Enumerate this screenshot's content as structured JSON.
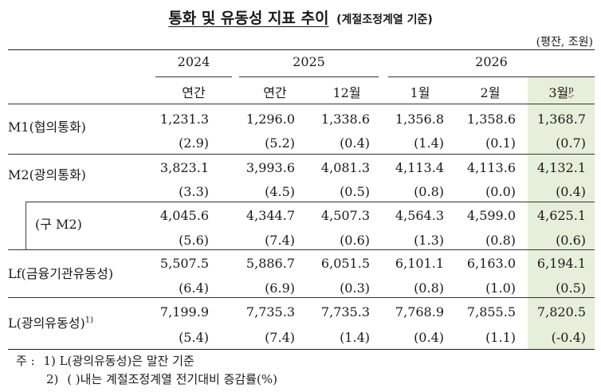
{
  "title": "통화 및 유동성 지표 추이",
  "subtitle": "(계절조정계열 기준)",
  "unit": "(평잔, 조원)",
  "years": [
    "2024",
    "2025",
    "2026"
  ],
  "columns": [
    "연간",
    "연간",
    "12월",
    "1월",
    "2월",
    "3월"
  ],
  "prelim_mark": "p",
  "rows": [
    {
      "label": "M1(협의통화)",
      "values": [
        "1,231.3",
        "1,296.0",
        "1,338.6",
        "1,356.8",
        "1,358.6",
        "1,368.7"
      ],
      "changes": [
        "(2.9)",
        "(5.2)",
        "(0.4)",
        "(1.4)",
        "(0.1)",
        "(0.7)"
      ]
    },
    {
      "label": "M2(광의통화)",
      "values": [
        "3,823.1",
        "3,993.6",
        "4,081.3",
        "4,113.4",
        "4,113.6",
        "4,132.1"
      ],
      "changes": [
        "(3.3)",
        "(4.5)",
        "(0.5)",
        "(0.8)",
        "(0.0)",
        "(0.4)"
      ]
    },
    {
      "label": "(구  M2)",
      "values": [
        "4,045.6",
        "4,344.7",
        "4,507.3",
        "4,564.3",
        "4,599.0",
        "4,625.1"
      ],
      "changes": [
        "(5.6)",
        "(7.4)",
        "(0.6)",
        "(1.3)",
        "(0.8)",
        "(0.6)"
      ]
    },
    {
      "label": "Lf(금융기관유동성)",
      "values": [
        "5,507.5",
        "5,886.7",
        "6,051.5",
        "6,101.1",
        "6,163.0",
        "6,194.1"
      ],
      "changes": [
        "(6.4)",
        "(6.9)",
        "(0.3)",
        "(0.8)",
        "(1.0)",
        "(0.5)"
      ]
    },
    {
      "label": "L(광의유동성)",
      "label_sup": "1)",
      "values": [
        "7,199.9",
        "7,735.3",
        "7,735.3",
        "7,768.9",
        "7,855.5",
        "7,820.5"
      ],
      "changes": [
        "(5.4)",
        "(7.4)",
        "(1.4)",
        "(0.4)",
        "(1.1)",
        "(-0.4)"
      ]
    }
  ],
  "footnotes": {
    "prefix": "주 :",
    "note1_num": "1)",
    "note1": "L(광의유동성)은 말잔 기준",
    "note2_num": "2)",
    "note2": "(    )내는 계절조정계열 전기대비 증감률(%)"
  }
}
